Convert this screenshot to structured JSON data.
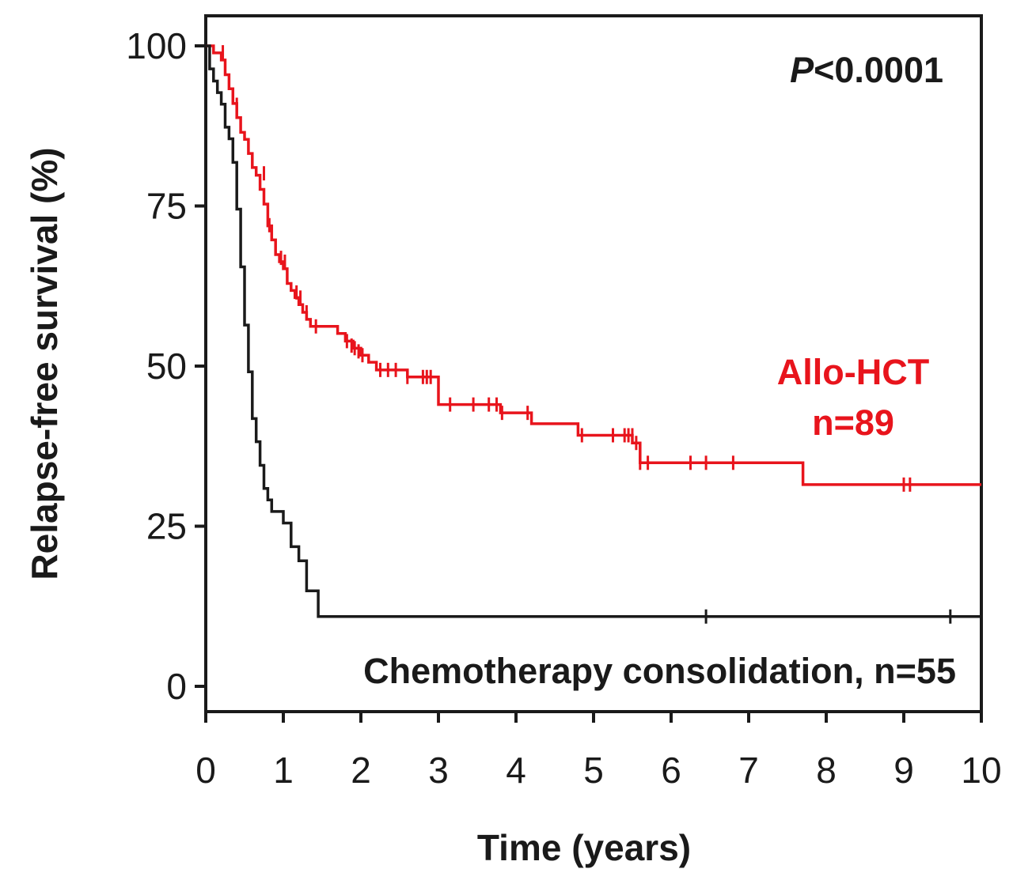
{
  "chart_data": {
    "type": "line",
    "subtype": "kaplan-meier",
    "title": "",
    "xlabel": "Time (years)",
    "ylabel": "Relapse-free survival (%)",
    "xlim": [
      0,
      10
    ],
    "ylim": [
      0,
      100
    ],
    "x_ticks": [
      0,
      1,
      2,
      3,
      4,
      5,
      6,
      7,
      8,
      9,
      10
    ],
    "y_ticks": [
      0,
      25,
      50,
      75,
      100
    ],
    "grid": false,
    "pvalue": {
      "symbol": "P",
      "text": "<0.0001"
    },
    "series": [
      {
        "name": "Allo-HCT",
        "label_line1": "Allo-HCT",
        "label_line2": "n=89",
        "color": "#e8141c",
        "step_x": [
          0,
          0.1,
          0.2,
          0.25,
          0.3,
          0.35,
          0.4,
          0.45,
          0.5,
          0.55,
          0.6,
          0.65,
          0.7,
          0.75,
          0.8,
          0.85,
          0.9,
          0.95,
          1.0,
          1.05,
          1.1,
          1.15,
          1.2,
          1.25,
          1.3,
          1.35,
          1.4,
          1.6,
          1.7,
          1.8,
          1.9,
          2.0,
          2.1,
          2.2,
          2.6,
          3.0,
          3.5,
          3.8,
          4.2,
          4.8,
          5.2,
          5.5,
          5.6,
          6.5,
          7.7,
          10.0
        ],
        "step_y": [
          100,
          98.9,
          97.8,
          95.5,
          93.3,
          91.0,
          88.8,
          86.5,
          85.4,
          83.2,
          81.0,
          79.8,
          77.6,
          75.3,
          71.9,
          69.7,
          67.4,
          66.3,
          65.2,
          62.9,
          61.8,
          60.7,
          59.6,
          58.4,
          57.3,
          56.2,
          56.2,
          56.2,
          55.1,
          53.9,
          52.8,
          51.7,
          50.6,
          49.4,
          48.3,
          44.0,
          44.0,
          42.7,
          41.0,
          39.2,
          39.2,
          38.0,
          34.9,
          34.9,
          31.5,
          31.5
        ],
        "censor_x": [
          0.22,
          0.4,
          0.75,
          0.82,
          0.97,
          1.02,
          1.17,
          1.22,
          1.3,
          1.42,
          1.82,
          1.88,
          1.92,
          1.97,
          2.02,
          2.25,
          2.35,
          2.45,
          2.6,
          2.8,
          2.85,
          2.9,
          3.15,
          3.45,
          3.65,
          3.75,
          3.82,
          4.15,
          4.85,
          5.25,
          5.4,
          5.45,
          5.5,
          5.55,
          5.6,
          5.7,
          6.25,
          6.45,
          6.8,
          9.0,
          9.08
        ],
        "censor_y": [
          99.0,
          90.8,
          80.1,
          72.0,
          66.9,
          66.3,
          61.5,
          60.7,
          58.4,
          56.2,
          53.9,
          53.2,
          52.8,
          52.3,
          51.7,
          49.4,
          49.4,
          49.4,
          48.3,
          48.3,
          48.3,
          48.3,
          44.0,
          44.0,
          44.0,
          44.0,
          42.7,
          42.7,
          39.2,
          39.2,
          39.2,
          39.2,
          39.2,
          38.0,
          34.9,
          34.9,
          34.9,
          34.9,
          34.9,
          31.5,
          31.5
        ]
      },
      {
        "name": "Chemotherapy consolidation",
        "label_line1": "Chemotherapy consolidation, n=55",
        "color": "#1a1a1a",
        "step_x": [
          0,
          0.05,
          0.1,
          0.15,
          0.2,
          0.25,
          0.3,
          0.35,
          0.4,
          0.45,
          0.5,
          0.55,
          0.6,
          0.65,
          0.7,
          0.75,
          0.8,
          0.85,
          1.0,
          1.1,
          1.2,
          1.3,
          1.45,
          10.0
        ],
        "step_y": [
          100,
          96.4,
          94.5,
          92.7,
          90.9,
          87.3,
          85.5,
          81.8,
          74.5,
          65.5,
          56.4,
          49.1,
          41.8,
          38.2,
          34.5,
          30.9,
          29.1,
          27.3,
          25.5,
          21.8,
          19.6,
          14.9,
          10.9,
          10.9
        ],
        "censor_x": [
          0.35,
          6.45,
          9.6
        ],
        "censor_y": [
          83.5,
          10.9,
          10.9
        ]
      }
    ]
  }
}
